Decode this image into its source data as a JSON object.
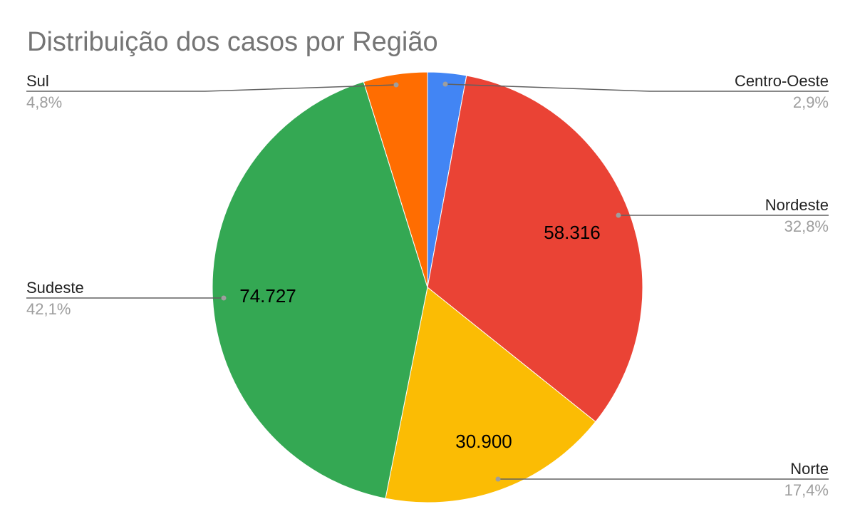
{
  "chart_data": {
    "type": "pie",
    "title": "Distribuição dos casos por Região",
    "slices": [
      {
        "label": "Centro-Oeste",
        "value": 5156,
        "percent_label": "2,9%",
        "value_label": "",
        "color": "#4285f4"
      },
      {
        "label": "Nordeste",
        "value": 58316,
        "percent_label": "32,8%",
        "value_label": "58.316",
        "color": "#ea4335"
      },
      {
        "label": "Norte",
        "value": 30900,
        "percent_label": "17,4%",
        "value_label": "30.900",
        "color": "#fbbc04"
      },
      {
        "label": "Sudeste",
        "value": 74727,
        "percent_label": "42,1%",
        "value_label": "74.727",
        "color": "#34a853"
      },
      {
        "label": "Sul",
        "value": 8523,
        "percent_label": "4,8%",
        "value_label": "",
        "color": "#ff6d01"
      }
    ],
    "legend": "callouts"
  }
}
